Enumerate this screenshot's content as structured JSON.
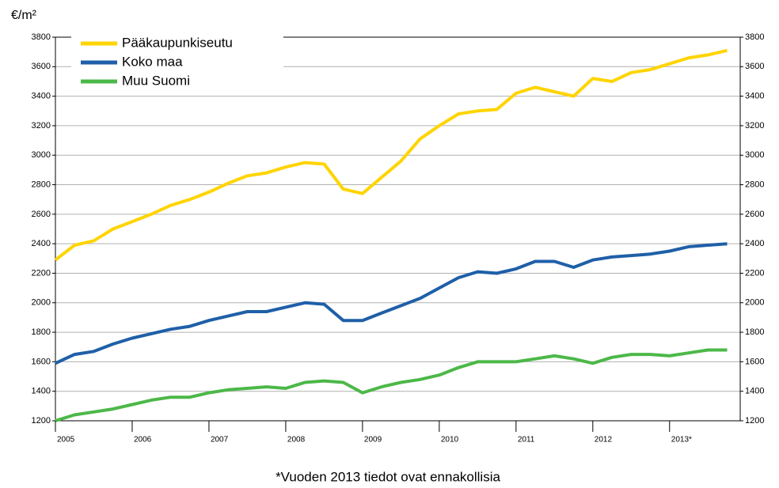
{
  "chart_data": {
    "type": "line",
    "y_unit": "€/m²",
    "footnote": "*Vuoden 2013 tiedot ovat ennakollisia",
    "x": [
      2005,
      2005.25,
      2005.5,
      2005.75,
      2006,
      2006.25,
      2006.5,
      2006.75,
      2007,
      2007.25,
      2007.5,
      2007.75,
      2008,
      2008.25,
      2008.5,
      2008.75,
      2009,
      2009.25,
      2009.5,
      2009.75,
      2010,
      2010.25,
      2010.5,
      2010.75,
      2011,
      2011.25,
      2011.5,
      2011.75,
      2012,
      2012.25,
      2012.5,
      2012.75,
      2013,
      2013.25,
      2013.5,
      2013.75
    ],
    "xlim": [
      2005,
      2013.92
    ],
    "xticks": [
      2005,
      2006,
      2007,
      2008,
      2009,
      2010,
      2011,
      2012,
      {
        "value": 2013,
        "label": "2013*"
      }
    ],
    "ylim": [
      1200,
      3800
    ],
    "yticks": [
      1200,
      1400,
      1600,
      1800,
      2000,
      2200,
      2400,
      2600,
      2800,
      3000,
      3200,
      3400,
      3600,
      3800
    ],
    "y2lim": [
      1200,
      3800
    ],
    "y2ticks": [
      1200,
      1400,
      1600,
      1800,
      2000,
      2200,
      2400,
      2600,
      2800,
      3000,
      3200,
      3400,
      3600,
      3800
    ],
    "grid": true,
    "legend": "top-left",
    "series": [
      {
        "name": "Pääkaupunkiseutu",
        "color": "#ffd400",
        "values": [
          2290,
          2390,
          2420,
          2500,
          2550,
          2600,
          2660,
          2700,
          2750,
          2810,
          2860,
          2880,
          2920,
          2950,
          2940,
          2770,
          2740,
          2850,
          2960,
          3110,
          3200,
          3280,
          3300,
          3310,
          3420,
          3460,
          3430,
          3400,
          3520,
          3500,
          3560,
          3580,
          3620,
          3660,
          3680,
          3710
        ]
      },
      {
        "name": "Koko maa",
        "color": "#1f5fa8",
        "values": [
          1590,
          1650,
          1670,
          1720,
          1760,
          1790,
          1820,
          1840,
          1880,
          1910,
          1940,
          1940,
          1970,
          2000,
          1990,
          1880,
          1880,
          1930,
          1980,
          2030,
          2100,
          2170,
          2210,
          2200,
          2230,
          2280,
          2280,
          2240,
          2290,
          2310,
          2320,
          2330,
          2350,
          2380,
          2390,
          2400
        ]
      },
      {
        "name": "Muu Suomi",
        "color": "#4cb848",
        "values": [
          1200,
          1240,
          1260,
          1280,
          1310,
          1340,
          1360,
          1360,
          1390,
          1410,
          1420,
          1430,
          1420,
          1460,
          1470,
          1460,
          1390,
          1430,
          1460,
          1480,
          1510,
          1560,
          1600,
          1600,
          1600,
          1620,
          1640,
          1620,
          1590,
          1630,
          1650,
          1650,
          1640,
          1660,
          1680,
          1680
        ]
      }
    ]
  }
}
